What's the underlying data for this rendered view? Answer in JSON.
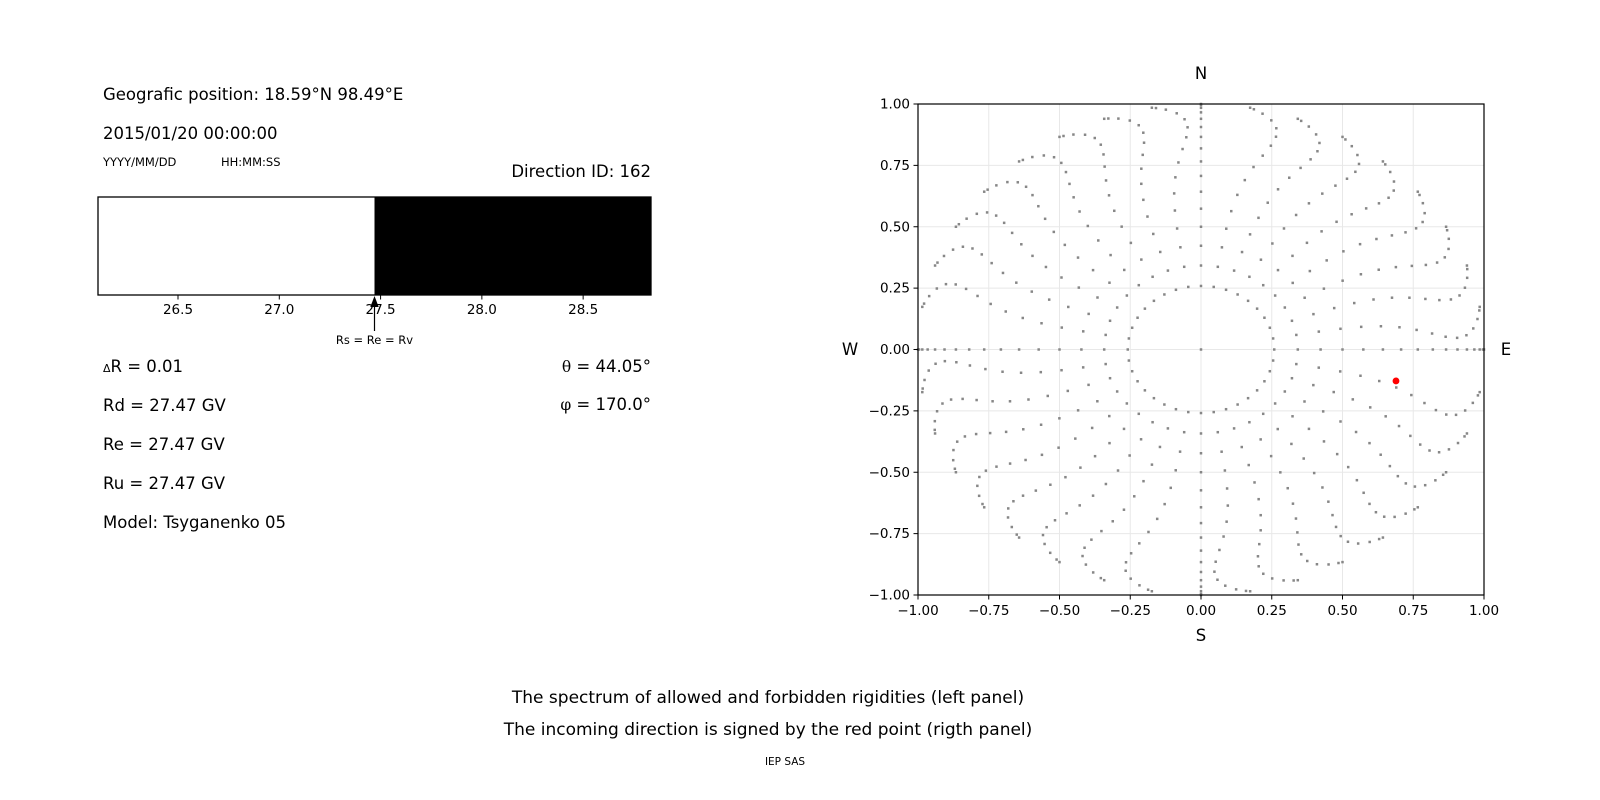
{
  "header": {
    "geographic_position": "Geografic position: 18.59°N 98.49°E",
    "datetime": "2015/01/20 00:00:00",
    "date_format_hint": "YYYY/MM/DD",
    "time_format_hint": "HH:MM:SS",
    "direction_id": "Direction ID: 162"
  },
  "parameters": {
    "delta_prefix": "Δ",
    "delta_r": "R = 0.01",
    "rd": "Rd = 27.47 GV",
    "re": "Re = 27.47 GV",
    "ru": "Ru = 27.47 GV",
    "model": "Model: Tsyganenko 05",
    "theta_symbol": "θ",
    "theta_value": " = 44.05°",
    "phi_symbol": "φ",
    "phi_value": " = 170.0°"
  },
  "captions": {
    "line1": "The spectrum of allowed and forbidden rigidities (left panel)",
    "line2": "The incoming direction is signed by the red point (rigth panel)",
    "credit": "IEP SAS"
  },
  "chart_data": [
    {
      "id": "rigidity-spectrum",
      "type": "area",
      "x_range": [
        26.105,
        28.835
      ],
      "x_ticks": [
        26.5,
        27.0,
        27.5,
        28.0,
        28.5
      ],
      "boundary_rigidity_gv": 27.47,
      "regions": [
        {
          "from": 26.105,
          "to": 27.47,
          "color": "#ffffff"
        },
        {
          "from": 27.47,
          "to": 28.835,
          "color": "#000000"
        }
      ],
      "annotation": {
        "label": "Rs = Re = Rv",
        "x": 27.47
      }
    },
    {
      "id": "direction-map",
      "type": "scatter",
      "x_range": [
        -1.0,
        1.0
      ],
      "y_range": [
        -1.0,
        1.0
      ],
      "x_ticks": [
        -1.0,
        -0.75,
        -0.5,
        -0.25,
        0.0,
        0.25,
        0.5,
        0.75,
        1.0
      ],
      "y_ticks": [
        -1.0,
        -0.75,
        -0.5,
        -0.25,
        0.0,
        0.25,
        0.5,
        0.75,
        1.0
      ],
      "grid": true,
      "grid_color": "#e8e8e8",
      "compass_labels": {
        "top": "N",
        "bottom": "S",
        "left": "W",
        "right": "E"
      },
      "dot_color": "#878787",
      "direction_grid": {
        "azimuth_step_deg": 10,
        "zenith_min_deg": 15,
        "zenith_max_deg": 90,
        "zenith_step_deg": 5,
        "radius_rule": "sin(zenith)",
        "includes_zenith_center_point": true,
        "bow_amplitude_deg": -7,
        "bow_exponent": 1.7,
        "straight_cardinals": true
      },
      "red_point": {
        "x": 0.689,
        "y": -0.128,
        "color": "#ff0000",
        "theta_deg": 44.05,
        "phi_deg": 170.0
      }
    }
  ]
}
